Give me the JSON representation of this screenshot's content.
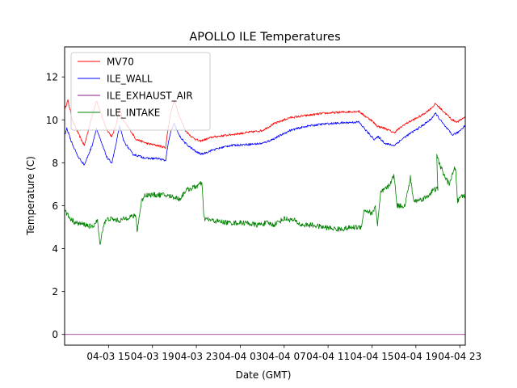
{
  "chart_data": {
    "type": "line",
    "title": "APOLLO ILE Temperatures",
    "xlabel": "Date (GMT)",
    "ylabel": "Temperature (C)",
    "xlim": [
      11.0,
      47.5
    ],
    "ylim": [
      -0.5,
      13.4
    ],
    "grid": false,
    "legend_position": "upper-left",
    "x_ticks": [
      {
        "value": 15,
        "label": "04-03 15"
      },
      {
        "value": 19,
        "label": "04-03 19"
      },
      {
        "value": 23,
        "label": "04-03 23"
      },
      {
        "value": 27,
        "label": "04-04 03"
      },
      {
        "value": 31,
        "label": "04-04 07"
      },
      {
        "value": 35,
        "label": "04-04 11"
      },
      {
        "value": 39,
        "label": "04-04 15"
      },
      {
        "value": 43,
        "label": "04-04 19"
      },
      {
        "value": 47,
        "label": "04-04 23"
      }
    ],
    "y_ticks": [
      {
        "value": 0,
        "label": "0"
      },
      {
        "value": 2,
        "label": "2"
      },
      {
        "value": 4,
        "label": "4"
      },
      {
        "value": 6,
        "label": "6"
      },
      {
        "value": 8,
        "label": "8"
      },
      {
        "value": 10,
        "label": "10"
      },
      {
        "value": 12,
        "label": "12"
      }
    ],
    "series": [
      {
        "name": "MV70",
        "color": "#ff0000",
        "noise": 0.05,
        "points": [
          [
            11.0,
            10.5
          ],
          [
            11.3,
            10.9
          ],
          [
            11.7,
            10.0
          ],
          [
            12.3,
            9.3
          ],
          [
            12.8,
            8.8
          ],
          [
            13.5,
            10.2
          ],
          [
            13.9,
            10.9
          ],
          [
            14.3,
            10.3
          ],
          [
            14.8,
            9.6
          ],
          [
            15.3,
            9.2
          ],
          [
            15.7,
            9.8
          ],
          [
            16.0,
            10.5
          ],
          [
            16.3,
            10.0
          ],
          [
            17.0,
            9.5
          ],
          [
            17.5,
            9.1
          ],
          [
            18.5,
            8.9
          ],
          [
            19.5,
            8.8
          ],
          [
            20.2,
            8.7
          ],
          [
            20.4,
            9.5
          ],
          [
            20.7,
            10.4
          ],
          [
            21.0,
            10.9
          ],
          [
            21.3,
            10.4
          ],
          [
            22.0,
            9.5
          ],
          [
            22.6,
            9.2
          ],
          [
            23.3,
            9.0
          ],
          [
            24.5,
            9.2
          ],
          [
            26.0,
            9.3
          ],
          [
            27.5,
            9.4
          ],
          [
            29.0,
            9.5
          ],
          [
            30.0,
            9.8
          ],
          [
            31.5,
            10.1
          ],
          [
            33.0,
            10.2
          ],
          [
            34.5,
            10.3
          ],
          [
            36.0,
            10.35
          ],
          [
            37.8,
            10.4
          ],
          [
            38.3,
            10.2
          ],
          [
            38.9,
            10.0
          ],
          [
            39.5,
            9.7
          ],
          [
            40.2,
            9.6
          ],
          [
            41.0,
            9.4
          ],
          [
            42.0,
            9.8
          ],
          [
            43.5,
            10.2
          ],
          [
            44.3,
            10.5
          ],
          [
            44.8,
            10.75
          ],
          [
            45.5,
            10.4
          ],
          [
            46.3,
            10.0
          ],
          [
            46.8,
            9.9
          ],
          [
            47.5,
            10.15
          ]
        ]
      },
      {
        "name": "ILE_WALL",
        "color": "#0000ff",
        "noise": 0.05,
        "points": [
          [
            11.0,
            9.3
          ],
          [
            11.2,
            9.6
          ],
          [
            11.6,
            9.0
          ],
          [
            12.2,
            8.3
          ],
          [
            12.8,
            7.9
          ],
          [
            13.5,
            8.8
          ],
          [
            13.9,
            9.6
          ],
          [
            14.3,
            9.0
          ],
          [
            14.9,
            8.2
          ],
          [
            15.3,
            8.0
          ],
          [
            15.7,
            8.9
          ],
          [
            16.0,
            9.7
          ],
          [
            16.4,
            9.0
          ],
          [
            17.2,
            8.4
          ],
          [
            18.5,
            8.2
          ],
          [
            19.5,
            8.2
          ],
          [
            20.2,
            8.1
          ],
          [
            20.4,
            8.8
          ],
          [
            20.7,
            9.5
          ],
          [
            21.0,
            9.8
          ],
          [
            21.4,
            9.3
          ],
          [
            22.0,
            8.9
          ],
          [
            23.0,
            8.5
          ],
          [
            23.5,
            8.4
          ],
          [
            24.5,
            8.6
          ],
          [
            26.0,
            8.8
          ],
          [
            27.5,
            8.85
          ],
          [
            29.0,
            8.9
          ],
          [
            30.0,
            9.1
          ],
          [
            31.5,
            9.5
          ],
          [
            33.0,
            9.7
          ],
          [
            34.5,
            9.8
          ],
          [
            36.0,
            9.85
          ],
          [
            37.8,
            9.9
          ],
          [
            38.3,
            9.6
          ],
          [
            38.8,
            9.3
          ],
          [
            39.2,
            9.1
          ],
          [
            39.6,
            9.2
          ],
          [
            40.2,
            8.9
          ],
          [
            41.0,
            8.8
          ],
          [
            42.0,
            9.2
          ],
          [
            43.5,
            9.7
          ],
          [
            44.3,
            10.0
          ],
          [
            44.8,
            10.3
          ],
          [
            45.5,
            9.8
          ],
          [
            46.3,
            9.3
          ],
          [
            46.8,
            9.4
          ],
          [
            47.5,
            9.75
          ]
        ]
      },
      {
        "name": "ILE_EXHAUST_AIR",
        "color": "#8b1a8b",
        "noise": 0,
        "points": [
          [
            11.0,
            0.0
          ],
          [
            47.5,
            0.0
          ]
        ]
      },
      {
        "name": "ILE_INTAKE",
        "color": "#008000",
        "noise": 0.12,
        "points": [
          [
            11.0,
            5.8
          ],
          [
            11.5,
            5.4
          ],
          [
            12.0,
            5.2
          ],
          [
            13.0,
            5.1
          ],
          [
            13.5,
            5.0
          ],
          [
            14.0,
            5.3
          ],
          [
            14.2,
            4.2
          ],
          [
            14.6,
            5.2
          ],
          [
            15.0,
            5.4
          ],
          [
            16.0,
            5.3
          ],
          [
            17.0,
            5.5
          ],
          [
            17.5,
            5.5
          ],
          [
            17.6,
            4.8
          ],
          [
            18.0,
            6.2
          ],
          [
            18.3,
            6.5
          ],
          [
            19.0,
            6.5
          ],
          [
            20.0,
            6.5
          ],
          [
            21.0,
            6.4
          ],
          [
            21.5,
            6.3
          ],
          [
            22.0,
            6.7
          ],
          [
            23.0,
            6.9
          ],
          [
            23.5,
            7.05
          ],
          [
            23.7,
            5.4
          ],
          [
            24.5,
            5.3
          ],
          [
            26.0,
            5.2
          ],
          [
            27.5,
            5.2
          ],
          [
            28.5,
            5.1
          ],
          [
            29.5,
            5.2
          ],
          [
            30.0,
            5.1
          ],
          [
            31.0,
            5.4
          ],
          [
            32.0,
            5.3
          ],
          [
            32.5,
            5.1
          ],
          [
            33.5,
            5.1
          ],
          [
            34.5,
            5.0
          ],
          [
            36.0,
            4.9
          ],
          [
            37.5,
            5.0
          ],
          [
            38.0,
            5.0
          ],
          [
            38.3,
            5.8
          ],
          [
            38.8,
            5.7
          ],
          [
            39.0,
            5.6
          ],
          [
            39.3,
            6.0
          ],
          [
            39.5,
            5.1
          ],
          [
            39.8,
            6.6
          ],
          [
            40.5,
            6.9
          ],
          [
            41.0,
            7.4
          ],
          [
            41.3,
            6.0
          ],
          [
            42.0,
            6.0
          ],
          [
            42.5,
            7.3
          ],
          [
            42.8,
            6.2
          ],
          [
            43.5,
            6.3
          ],
          [
            44.0,
            6.4
          ],
          [
            44.5,
            6.7
          ],
          [
            45.0,
            6.8
          ],
          [
            44.9,
            8.3
          ],
          [
            45.5,
            7.5
          ],
          [
            46.0,
            7.0
          ],
          [
            46.6,
            7.8
          ],
          [
            46.8,
            6.2
          ],
          [
            47.2,
            6.5
          ],
          [
            47.5,
            6.4
          ]
        ]
      }
    ]
  }
}
